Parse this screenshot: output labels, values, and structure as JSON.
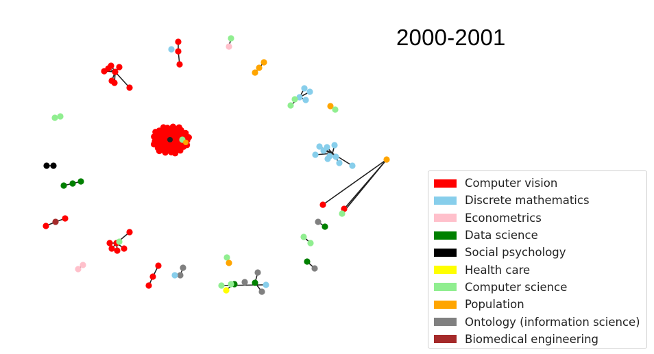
{
  "title": "2000-2001",
  "legend": [
    {
      "label": "Computer vision",
      "color": "#ff0000"
    },
    {
      "label": "Discrete mathematics",
      "color": "#87ceeb"
    },
    {
      "label": "Econometrics",
      "color": "#ffc0cb"
    },
    {
      "label": "Data science",
      "color": "#008000"
    },
    {
      "label": "Social psychology",
      "color": "#000000"
    },
    {
      "label": "Health care",
      "color": "#ffff00"
    },
    {
      "label": "Computer science",
      "color": "#90ee90"
    },
    {
      "label": "Population",
      "color": "#ffa500"
    },
    {
      "label": "Ontology (information science)",
      "color": "#808080"
    },
    {
      "label": "Biomedical engineering",
      "color": "#a52a2a"
    }
  ]
}
